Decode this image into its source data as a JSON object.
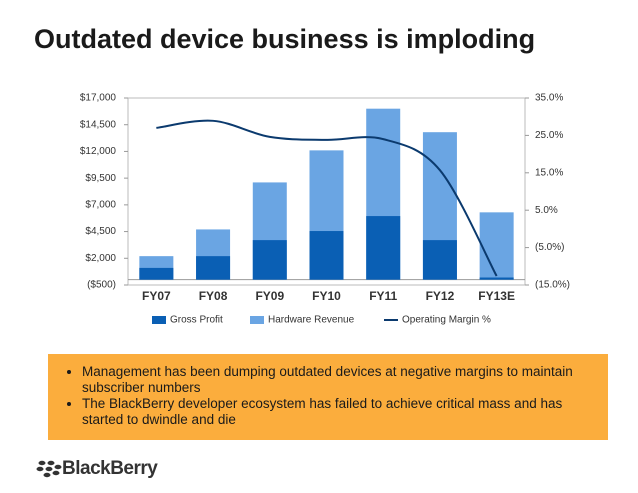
{
  "title": "Outdated device business is imploding",
  "chart_data": {
    "type": "bar",
    "categories": [
      "FY07",
      "FY08",
      "FY09",
      "FY10",
      "FY11",
      "FY12",
      "FY13E"
    ],
    "series": [
      {
        "name": "Hardware Revenue",
        "color": "#6aa5e3",
        "values": [
          2200,
          4700,
          9100,
          12100,
          16000,
          13800,
          6300
        ]
      },
      {
        "name": "Gross Profit",
        "color": "#0a5fb4",
        "values": [
          1100,
          2200,
          3700,
          4550,
          5950,
          3700,
          200
        ]
      },
      {
        "name": "Operating Margin %",
        "color": "#0b3a6e",
        "axis": "y2",
        "type": "line",
        "values": [
          27.0,
          28.9,
          24.6,
          23.8,
          24.0,
          15.7,
          -12.6
        ]
      }
    ],
    "legend_order": [
      "Gross Profit",
      "Hardware Revenue",
      "Operating Margin %"
    ],
    "ylim": [
      -500,
      17000
    ],
    "yticks": [
      {
        "value": -500,
        "label": "($500)"
      },
      {
        "value": 2000,
        "label": "$2,000"
      },
      {
        "value": 4500,
        "label": "$4,500"
      },
      {
        "value": 7000,
        "label": "$7,000"
      },
      {
        "value": 9500,
        "label": "$9,500"
      },
      {
        "value": 12000,
        "label": "$12,000"
      },
      {
        "value": 14500,
        "label": "$14,500"
      },
      {
        "value": 17000,
        "label": "$17,000"
      }
    ],
    "y2lim": [
      -15,
      35
    ],
    "y2ticks": [
      {
        "value": -15,
        "label": "(15.0%)"
      },
      {
        "value": -5,
        "label": "(5.0%)"
      },
      {
        "value": 5,
        "label": "5.0%"
      },
      {
        "value": 15,
        "label": "15.0%"
      },
      {
        "value": 25,
        "label": "25.0%"
      },
      {
        "value": 35,
        "label": "35.0%"
      }
    ],
    "legend": "bottom"
  },
  "bullets": [
    "Management has been dumping outdated devices at negative margins to maintain subscriber numbers",
    "The BlackBerry developer ecosystem has failed to achieve critical mass and has started to dwindle and die"
  ],
  "logo": "BlackBerry"
}
